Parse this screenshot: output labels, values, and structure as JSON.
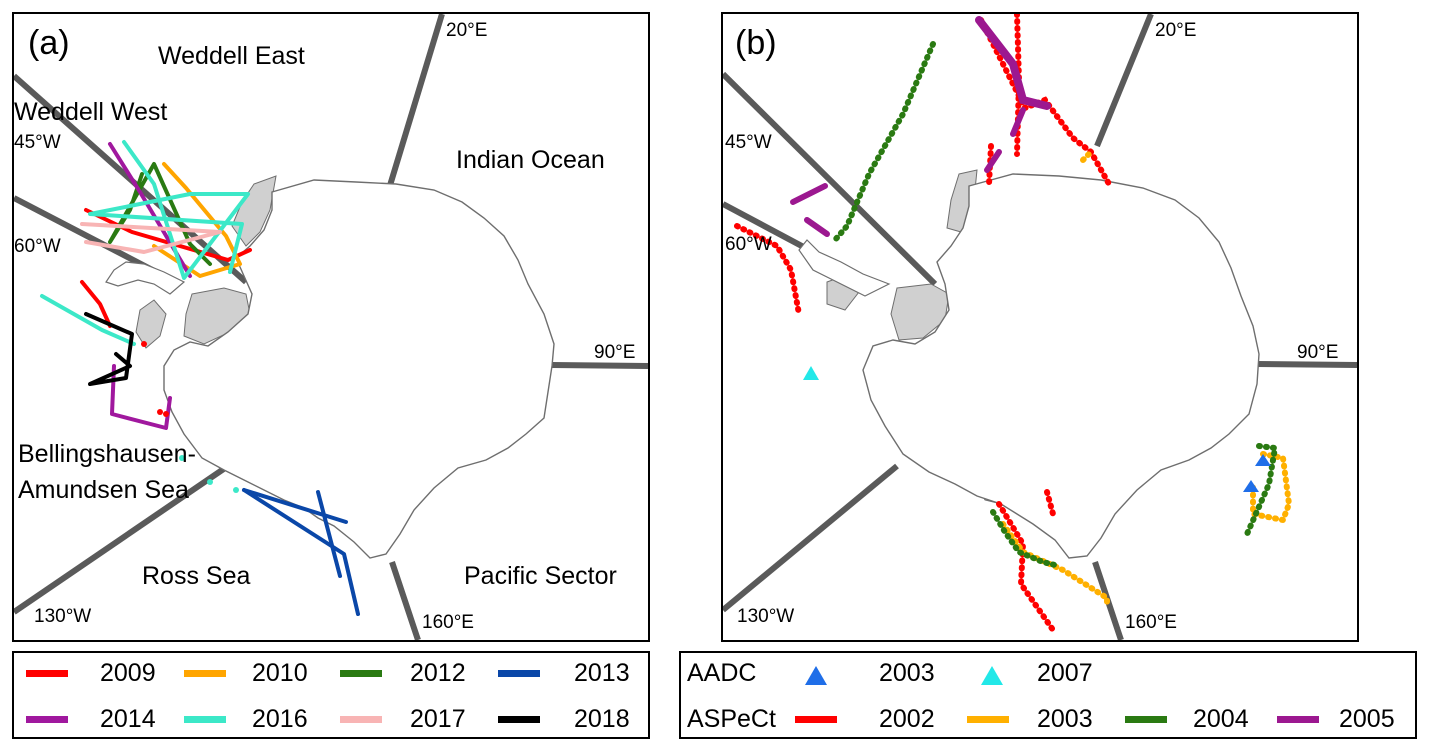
{
  "panel_a": {
    "letter": "(a)",
    "regions": {
      "weddell_east": "Weddell East",
      "weddell_west": "Weddell West",
      "indian_ocean": "Indian Ocean",
      "bellingshausen_1": "Bellingshausen-",
      "bellingshausen_2": "Amundsen Sea",
      "ross_sea": "Ross Sea",
      "pacific_sector": "Pacific Sector"
    },
    "meridians": {
      "e20": "20°E",
      "w45": "45°W",
      "w60": "60°W",
      "e90": "90°E",
      "w130": "130°W",
      "e160": "160°E"
    },
    "legend": [
      {
        "label": "2009",
        "color": "#ff0000"
      },
      {
        "label": "2010",
        "color": "#ffa500"
      },
      {
        "label": "2012",
        "color": "#2a7a12"
      },
      {
        "label": "2013",
        "color": "#0a47a8"
      },
      {
        "label": "2014",
        "color": "#a0189e"
      },
      {
        "label": "2016",
        "color": "#3ce8c8"
      },
      {
        "label": "2017",
        "color": "#f8b4b4"
      },
      {
        "label": "2018",
        "color": "#000000"
      }
    ]
  },
  "panel_b": {
    "letter": "(b)",
    "meridians": {
      "e20": "20°E",
      "w45": "45°W",
      "w60": "60°W",
      "e90": "90°E",
      "w130": "130°W",
      "e160": "160°E"
    },
    "legend": {
      "aadc_label": "AADC",
      "aadc_items": [
        {
          "label": "2003",
          "color": "#1f6ee8"
        },
        {
          "label": "2007",
          "color": "#22e8e8"
        }
      ],
      "aspect_label": "ASPeCt",
      "aspect_items": [
        {
          "label": "2002",
          "color": "#ff0000"
        },
        {
          "label": "2003",
          "color": "#ffb000"
        },
        {
          "label": "2004",
          "color": "#2a7a12"
        },
        {
          "label": "2005",
          "color": "#9c1890"
        }
      ]
    }
  },
  "colors": {
    "sector_lines": "#5a5a5a",
    "ice_shelf": "#d0d0d0",
    "coast": "#6e6e6e"
  }
}
